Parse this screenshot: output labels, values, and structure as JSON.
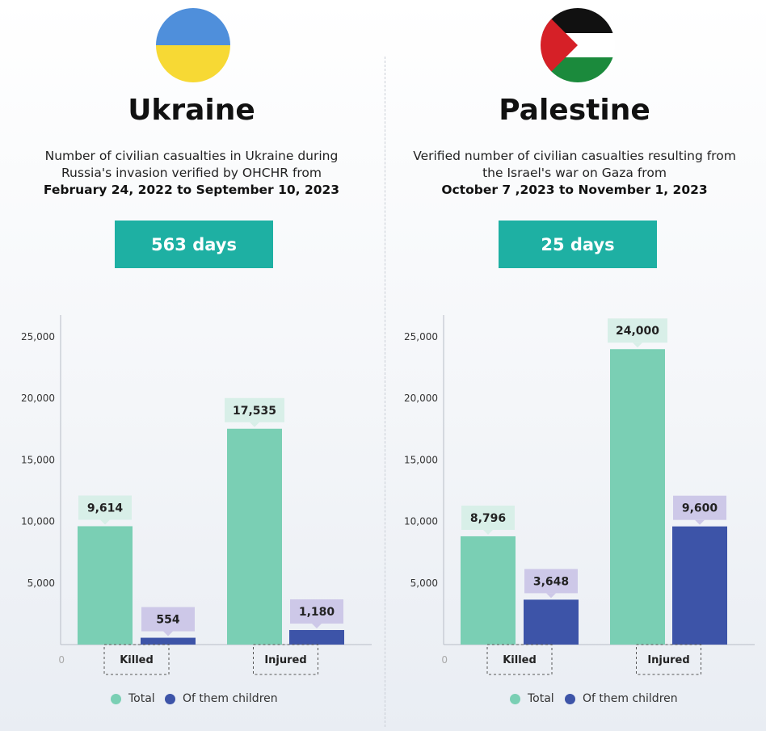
{
  "colors": {
    "total": "#7acfb4",
    "children": "#3d54a8",
    "total_label_bg": "#d8efe8",
    "children_label_bg": "#cdc8e8",
    "days_bg": "#1eb0a3"
  },
  "legend": {
    "total": "Total",
    "children": "Of them children"
  },
  "panels": [
    {
      "flag": "ukraine-flag",
      "country": "Ukraine",
      "desc_line1": "Number of civilian casualties in Ukraine during",
      "desc_line2": "Russia's invasion verified by OHCHR from",
      "desc_line3": "February 24, 2022 to September 10, 2023",
      "days": "563 days"
    },
    {
      "flag": "palestine-flag",
      "country": "Palestine",
      "desc_line1": "Verified number of civilian casualties resulting from",
      "desc_line2": "the Israel's war on Gaza from",
      "desc_line3": "October 7 ,2023 to November 1, 2023",
      "days": "25 days"
    }
  ],
  "chart_data": [
    {
      "type": "bar",
      "title": "Ukraine",
      "categories": [
        "Killed",
        "Injured"
      ],
      "series": [
        {
          "name": "Total",
          "values": [
            9614,
            17535
          ]
        },
        {
          "name": "Of them children",
          "values": [
            554,
            1180
          ]
        }
      ],
      "data_labels": {
        "Total": [
          "9,614",
          "17,535"
        ],
        "Of them children": [
          "554",
          "1,180"
        ]
      },
      "yticks": [
        0,
        5000,
        10000,
        15000,
        20000,
        25000
      ],
      "ytick_labels": [
        "0",
        "5,000",
        "10,000",
        "15,000",
        "20,000",
        "25,000"
      ],
      "ylim": [
        0,
        25000
      ],
      "legend": "bottom"
    },
    {
      "type": "bar",
      "title": "Palestine",
      "categories": [
        "Killed",
        "Injured"
      ],
      "series": [
        {
          "name": "Total",
          "values": [
            8796,
            24000
          ]
        },
        {
          "name": "Of them children",
          "values": [
            3648,
            9600
          ]
        }
      ],
      "data_labels": {
        "Total": [
          "8,796",
          "24,000"
        ],
        "Of them children": [
          "3,648",
          "9,600"
        ]
      },
      "yticks": [
        0,
        5000,
        10000,
        15000,
        20000,
        25000
      ],
      "ytick_labels": [
        "0",
        "5,000",
        "10,000",
        "15,000",
        "20,000",
        "25,000"
      ],
      "ylim": [
        0,
        25000
      ],
      "legend": "bottom"
    }
  ]
}
